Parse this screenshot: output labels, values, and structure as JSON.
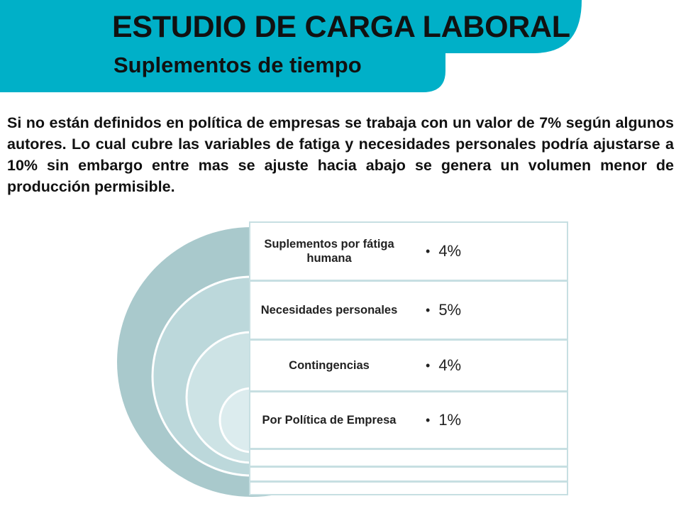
{
  "header": {
    "title": "ESTUDIO DE CARGA LABORAL",
    "subtitle": "Suplementos de tiempo",
    "band_color": "#00b0c8"
  },
  "intro_text": "Si no están definidos en política de empresas se trabaja con un valor de 7% según algunos autores. Lo cual cubre las variables de fatiga y necesidades personales podría ajustarse a 10% sin embargo entre mas se ajuste hacia abajo se genera un volumen menor de producción permisible.",
  "diagram": {
    "arc_colors": [
      "#a9c9cc",
      "#bcd8db",
      "#cde3e5",
      "#dcecee"
    ],
    "rows": [
      {
        "label": "Suplementos por fátiga humana",
        "value": "4%"
      },
      {
        "label": "Necesidades personales",
        "value": "5%"
      },
      {
        "label": "Contingencias",
        "value": "4%"
      },
      {
        "label": "Por Política de Empresa",
        "value": "1%"
      }
    ]
  }
}
